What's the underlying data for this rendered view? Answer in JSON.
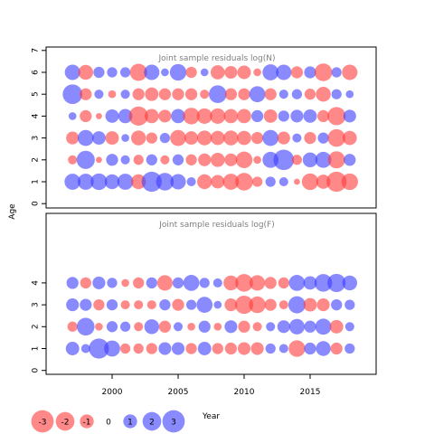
{
  "colors": {
    "negative": "#ff3b3b",
    "positive": "#3c3cff",
    "frame": "#000000",
    "title": "#7f7f7f"
  },
  "ylabel": "Age",
  "xlabel": "Year",
  "chart_data": [
    {
      "type": "scatter",
      "subtype": "bubble",
      "title": "Joint sample residuals log(N)",
      "x": [
        1997,
        1998,
        1999,
        2000,
        2001,
        2002,
        2003,
        2004,
        2005,
        2006,
        2007,
        2008,
        2009,
        2010,
        2011,
        2012,
        2013,
        2014,
        2015,
        2016,
        2017,
        2018
      ],
      "x_ticks": [
        2000,
        2005,
        2010,
        2015
      ],
      "x_tick_labels": [
        "2000",
        "2005",
        "2010",
        "2015"
      ],
      "ylim": [
        0,
        7
      ],
      "y_ticks": [
        0,
        1,
        2,
        3,
        4,
        5,
        6,
        7
      ],
      "series": [
        {
          "age": 1,
          "residuals": [
            1.2,
            1.2,
            1.3,
            1.0,
            1.2,
            -1.0,
            2.0,
            1.5,
            1.1,
            0.3,
            -1.0,
            -0.8,
            -1.2,
            -1.5,
            -0.4,
            0.4,
            0.3,
            -0.1,
            -1.3,
            -0.9,
            -2.0,
            -1.3
          ]
        },
        {
          "age": 2,
          "residuals": [
            -0.3,
            1.6,
            -0.1,
            0.6,
            0.3,
            -0.4,
            0.5,
            -0.3,
            0.5,
            -0.5,
            -0.7,
            -0.9,
            -0.7,
            -1.3,
            -0.2,
            1.2,
            2.1,
            -0.4,
            1.0,
            1.2,
            -1.4,
            0.6
          ]
        },
        {
          "age": 3,
          "residuals": [
            -0.7,
            1.2,
            0.8,
            -0.8,
            0.2,
            -1.0,
            -0.5,
            0.4,
            -1.2,
            -0.8,
            -1.0,
            -0.9,
            -1.0,
            -0.9,
            -0.6,
            1.2,
            -0.7,
            0.3,
            -0.6,
            0.5,
            -1.5,
            -0.9
          ]
        },
        {
          "age": 4,
          "residuals": [
            0.2,
            -0.6,
            -0.1,
            0.8,
            0.9,
            -1.8,
            -0.9,
            -0.7,
            0.9,
            -1.3,
            -1.1,
            -1.1,
            -0.9,
            -0.9,
            0.6,
            -0.8,
            0.5,
            0.7,
            0.8,
            -0.6,
            -1.6,
            0.7
          ]
        },
        {
          "age": 5,
          "residuals": [
            1.9,
            -0.6,
            0.3,
            -0.2,
            0.3,
            -0.6,
            -0.8,
            -0.6,
            -0.6,
            -0.6,
            -0.3,
            1.5,
            -0.6,
            -0.6,
            1.2,
            -0.6,
            0.3,
            0.4,
            -0.5,
            -1.0,
            0.4,
            0.2
          ]
        },
        {
          "age": 6,
          "residuals": [
            1.1,
            -1.0,
            0.5,
            0.4,
            0.4,
            -1.4,
            1.1,
            0.2,
            1.3,
            -0.5,
            0.2,
            -0.9,
            -0.7,
            -0.8,
            -0.2,
            1.2,
            1.1,
            -0.6,
            0.6,
            -1.5,
            0.4,
            -1.1
          ]
        }
      ]
    },
    {
      "type": "scatter",
      "subtype": "bubble",
      "title": "Joint sample residuals log(F)",
      "x": [
        1997,
        1998,
        1999,
        2000,
        2001,
        2002,
        2003,
        2004,
        2005,
        2006,
        2007,
        2008,
        2009,
        2010,
        2011,
        2012,
        2013,
        2014,
        2015,
        2016,
        2017,
        2018
      ],
      "x_ticks": [
        2000,
        2005,
        2010,
        2015
      ],
      "x_tick_labels": [
        "2000",
        "2005",
        "2010",
        "2015"
      ],
      "ylim": [
        0,
        4.5
      ],
      "y_ticks": [
        0,
        1,
        2,
        3,
        4
      ],
      "series": [
        {
          "age": 1,
          "residuals": [
            0.8,
            0.3,
            2.0,
            1.2,
            -0.4,
            -0.4,
            -0.5,
            0.7,
            0.7,
            -0.5,
            0.8,
            -0.5,
            -0.6,
            -0.7,
            -0.7,
            0.4,
            0.3,
            -1.3,
            0.6,
            1.0,
            -0.6,
            0.4
          ]
        },
        {
          "age": 2,
          "residuals": [
            -0.4,
            1.5,
            -0.2,
            0.5,
            0.4,
            -0.3,
            1.0,
            -0.6,
            0.3,
            -0.2,
            0.6,
            -0.2,
            0.7,
            -0.6,
            -0.3,
            0.3,
            0.7,
            1.1,
            0.6,
            1.2,
            -0.8,
            0.3
          ]
        },
        {
          "age": 3,
          "residuals": [
            0.7,
            0.6,
            -0.5,
            0.5,
            -0.3,
            -0.3,
            -0.3,
            0.5,
            -0.6,
            0.4,
            1.2,
            0.2,
            -0.7,
            -1.6,
            -1.3,
            -0.6,
            -0.3,
            1.4,
            -0.8,
            -0.7,
            0.5,
            0.4
          ]
        },
        {
          "age": 4,
          "residuals": [
            0.6,
            -0.5,
            0.7,
            0.4,
            -0.2,
            -0.5,
            0.5,
            -1.1,
            0.5,
            1.2,
            0.4,
            0.3,
            -1.0,
            -1.5,
            -1.1,
            -0.6,
            -0.5,
            1.2,
            0.8,
            1.5,
            1.6,
            1.0
          ]
        }
      ]
    }
  ],
  "legend": {
    "values": [
      -3,
      -2,
      -1,
      0,
      1,
      2,
      3
    ],
    "labels": [
      "-3",
      "-2",
      "-1",
      "0",
      "1",
      "2",
      "3"
    ]
  }
}
